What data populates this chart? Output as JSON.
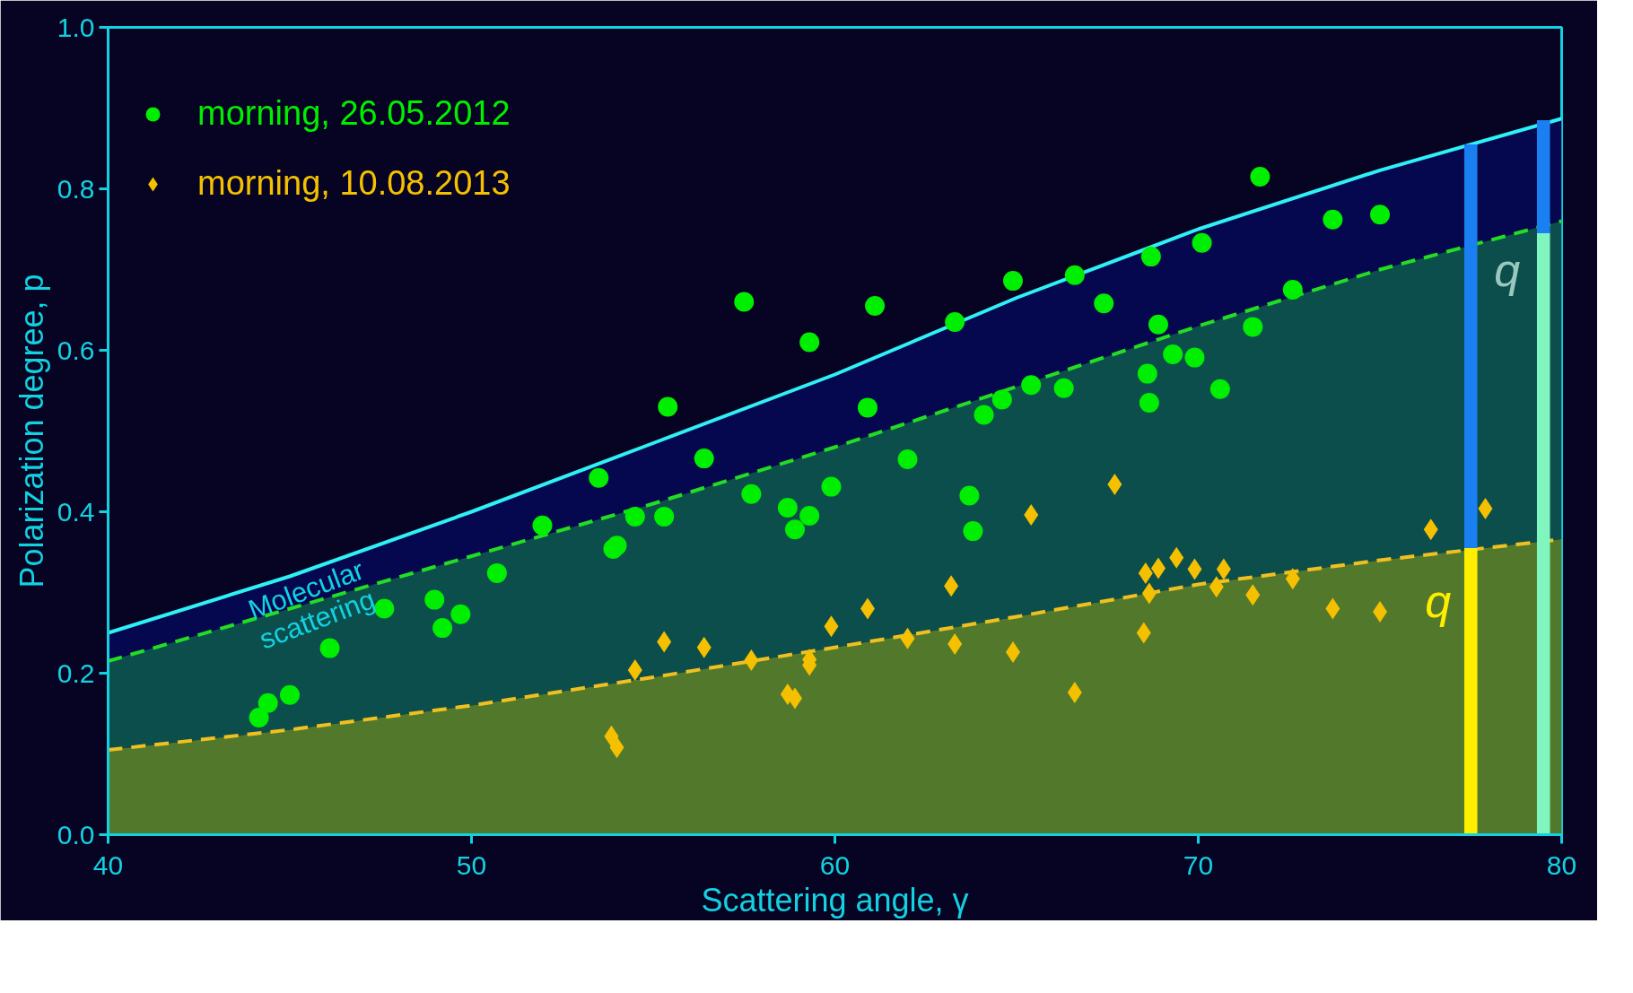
{
  "chart_data": {
    "type": "scatter",
    "xlabel": "Scattering angle, γ",
    "ylabel": "Polarization degree, p",
    "xlim": [
      40,
      80
    ],
    "ylim": [
      0,
      1
    ],
    "xticks": [
      40,
      50,
      60,
      70,
      80
    ],
    "yticks": [
      {
        "value": 0,
        "label": "0.0"
      },
      0.2,
      0.4,
      0.6,
      0.8,
      {
        "value": 1,
        "label": "1.0"
      }
    ],
    "grid": false,
    "legend": "top left",
    "series": [
      {
        "type": "line",
        "color": "#2ef0f5",
        "line_style": "solid",
        "x": [
          40,
          45,
          50,
          55,
          60,
          65,
          70,
          75,
          80
        ],
        "values": [
          0.25,
          0.32,
          0.4,
          0.485,
          0.57,
          0.665,
          0.75,
          0.823,
          0.887
        ],
        "lower": [
          0.215,
          0.28,
          0.345,
          0.41,
          0.48,
          0.555,
          0.63,
          0.7,
          0.76
        ],
        "upper": [
          0.25,
          0.32,
          0.4,
          0.485,
          0.57,
          0.665,
          0.75,
          0.823,
          0.887
        ]
      },
      {
        "type": "line",
        "color": "#22dd22",
        "line_style": "dashed",
        "x": [
          40,
          45,
          50,
          55,
          60,
          65,
          70,
          75,
          80
        ],
        "values": [
          0.215,
          0.28,
          0.345,
          0.41,
          0.48,
          0.555,
          0.63,
          0.7,
          0.76
        ],
        "lower": [
          0.105,
          0.13,
          0.16,
          0.195,
          0.232,
          0.27,
          0.31,
          0.34,
          0.366
        ],
        "upper": [
          0.215,
          0.28,
          0.345,
          0.41,
          0.48,
          0.555,
          0.63,
          0.7,
          0.76
        ]
      },
      {
        "type": "line",
        "color": "#f0c020",
        "line_style": "dashed",
        "x": [
          40,
          45,
          50,
          55,
          60,
          65,
          70,
          75,
          80
        ],
        "values": [
          0.105,
          0.13,
          0.16,
          0.195,
          0.232,
          0.27,
          0.31,
          0.34,
          0.366
        ],
        "lower": [
          0,
          0,
          0,
          0,
          0,
          0,
          0,
          0,
          0
        ],
        "upper": [
          0.105,
          0.13,
          0.16,
          0.195,
          0.232,
          0.27,
          0.31,
          0.34,
          0.366
        ]
      },
      {
        "type": "bar",
        "color": "#ffee00",
        "x": [
          77.5
        ],
        "base": [
          0
        ],
        "values": [
          0.355
        ]
      },
      {
        "type": "bar",
        "color": "#1a7ff0",
        "x": [
          77.5
        ],
        "base": [
          0.355
        ],
        "values": [
          0.5
        ]
      },
      {
        "type": "bar",
        "color": "#80f5c0",
        "x": [
          79.5
        ],
        "base": [
          0
        ],
        "values": [
          0.745
        ]
      },
      {
        "type": "bar",
        "color": "#1a7ff0",
        "x": [
          79.5
        ],
        "base": [
          0.745
        ],
        "values": [
          0.14
        ]
      },
      {
        "name": "morning, 26.05.2012",
        "color": "#00ee00",
        "marker": "circle",
        "x": [
          44.15,
          44.4,
          45.0,
          46.1,
          47.6,
          48.98,
          49.2,
          49.7,
          50.7,
          51.95,
          53.5,
          53.9,
          54.0,
          54.5,
          55.4,
          55.3,
          56.4,
          57.5,
          57.7,
          58.7,
          58.9,
          59.3,
          59.3,
          59.9,
          60.9,
          61.1,
          62.0,
          63.3,
          63.7,
          63.8,
          64.1,
          64.6,
          64.9,
          65.4,
          66.3,
          66.6,
          67.4,
          68.6,
          68.65,
          68.7,
          68.9,
          69.3,
          69.9,
          70.1,
          70.6,
          71.5,
          71.7,
          72.6,
          73.7,
          75.0
        ],
        "values": [
          0.145,
          0.163,
          0.173,
          0.231,
          0.28,
          0.291,
          0.256,
          0.273,
          0.324,
          0.383,
          0.442,
          0.354,
          0.358,
          0.394,
          0.53,
          0.394,
          0.466,
          0.66,
          0.422,
          0.405,
          0.378,
          0.61,
          0.395,
          0.431,
          0.529,
          0.655,
          0.465,
          0.635,
          0.42,
          0.376,
          0.52,
          0.539,
          0.686,
          0.557,
          0.553,
          0.693,
          0.658,
          0.571,
          0.535,
          0.716,
          0.632,
          0.595,
          0.591,
          0.733,
          0.552,
          0.629,
          0.815,
          0.675,
          0.762,
          0.768
        ]
      },
      {
        "name": "morning, 10.08.2013",
        "color": "#f5c000",
        "marker": "diamond",
        "x": [
          53.85,
          54.0,
          54.5,
          55.3,
          56.4,
          57.7,
          58.7,
          58.9,
          59.3,
          59.3,
          59.9,
          60.9,
          62.0,
          63.2,
          63.3,
          64.9,
          65.4,
          66.6,
          67.7,
          68.5,
          68.55,
          68.65,
          68.9,
          69.4,
          69.9,
          70.5,
          70.7,
          71.5,
          72.6,
          73.7,
          75.0,
          76.4,
          77.9
        ],
        "values": [
          0.122,
          0.108,
          0.204,
          0.239,
          0.232,
          0.216,
          0.174,
          0.169,
          0.217,
          0.21,
          0.258,
          0.28,
          0.243,
          0.308,
          0.236,
          0.226,
          0.396,
          0.176,
          0.434,
          0.25,
          0.324,
          0.299,
          0.33,
          0.343,
          0.329,
          0.307,
          0.329,
          0.297,
          0.317,
          0.28,
          0.276,
          0.378,
          0.404
        ]
      }
    ],
    "annotations": [
      "Molecular\nscattering",
      "q",
      "q"
    ]
  }
}
